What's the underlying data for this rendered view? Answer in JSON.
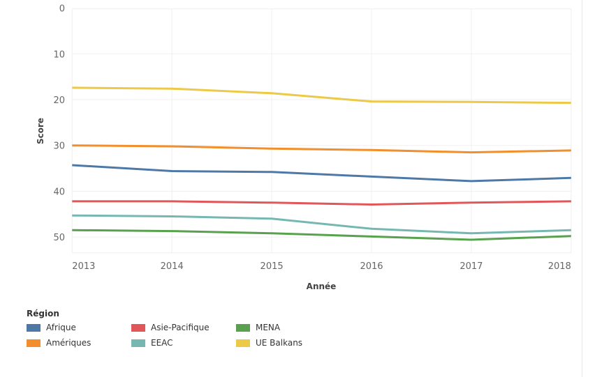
{
  "chart_data": {
    "type": "line",
    "xlabel": "Année",
    "ylabel": "Score",
    "x": [
      "2013",
      "2014",
      "2015",
      "2016",
      "2017",
      "2018"
    ],
    "y_ticks": [
      "0",
      "10",
      "20",
      "30",
      "40",
      "50"
    ],
    "ylim": [
      0,
      53.5
    ],
    "y_reversed": true,
    "grid": true,
    "legend_title": "Région",
    "legend_position": "bottom-left",
    "series": [
      {
        "name": "Afrique",
        "color": "#4e79a7",
        "values": [
          34.3,
          35.6,
          35.8,
          36.8,
          37.8,
          37.1
        ]
      },
      {
        "name": "Asie-Pacifique",
        "color": "#e15759",
        "values": [
          42.2,
          42.2,
          42.5,
          42.9,
          42.5,
          42.2
        ]
      },
      {
        "name": "MENA",
        "color": "#59a14f",
        "values": [
          48.5,
          48.7,
          49.2,
          49.9,
          50.6,
          49.8
        ]
      },
      {
        "name": "Amériques",
        "color": "#f28e2b",
        "values": [
          30.0,
          30.2,
          30.7,
          31.0,
          31.5,
          31.1
        ]
      },
      {
        "name": "EEAC",
        "color": "#76b7b2",
        "values": [
          45.3,
          45.5,
          46.0,
          48.2,
          49.2,
          48.5
        ]
      },
      {
        "name": "UE Balkans",
        "color": "#edc948",
        "values": [
          17.4,
          17.6,
          18.6,
          20.4,
          20.5,
          20.7
        ]
      }
    ]
  }
}
